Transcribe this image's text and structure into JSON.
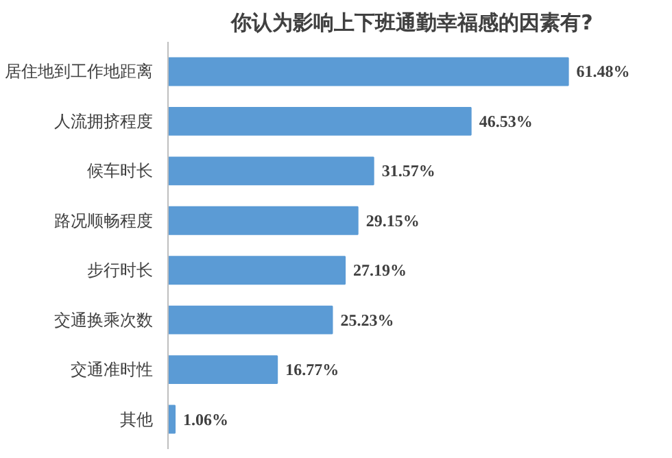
{
  "chart_data": {
    "type": "bar",
    "orientation": "horizontal",
    "title": "你认为影响上下班通勤幸福感的因素有?",
    "categories": [
      "居住地到工作地距离",
      "人流拥挤程度",
      "候车时长",
      "路况顺畅程度",
      "步行时长",
      "交通换乘次数",
      "交通准时性",
      "其他"
    ],
    "values": [
      61.48,
      46.53,
      31.57,
      29.15,
      27.19,
      25.23,
      16.77,
      1.06
    ],
    "value_labels": [
      "61.48%",
      "46.53%",
      "31.57%",
      "29.15%",
      "27.19%",
      "25.23%",
      "16.77%",
      "1.06%"
    ],
    "color": "#5b9bd5"
  }
}
